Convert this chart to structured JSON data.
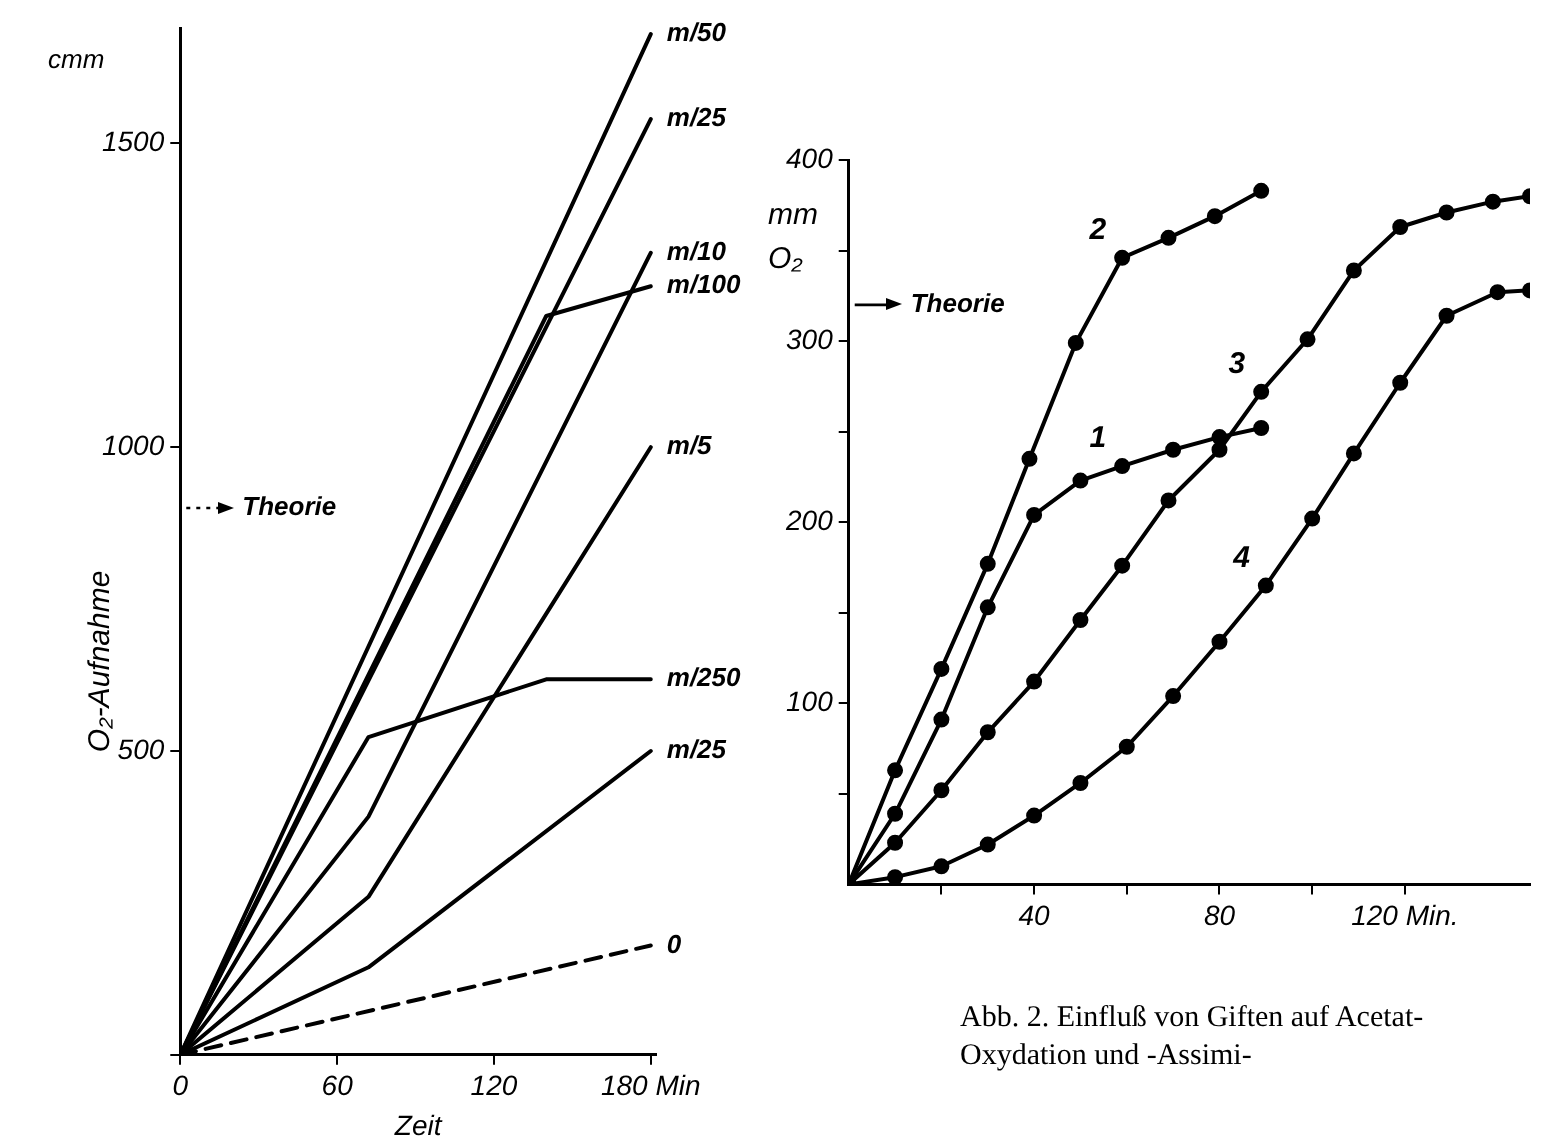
{
  "chart_data": [
    {
      "type": "line",
      "xlabel": "Zeit",
      "ylabel": "O₂-Aufnahme",
      "xlim": [
        0,
        182
      ],
      "ylim": [
        0,
        1690
      ],
      "xticks": [
        0,
        60,
        120,
        {
          "value": 180,
          "label": "180 Min"
        }
      ],
      "yticks": [
        {
          "value": 0,
          "label": null
        },
        500,
        1000,
        1500
      ],
      "grid": false,
      "legend": false,
      "marker": "none",
      "annotations": [
        "cmm"
      ],
      "ref_lines": [
        {
          "axis": "y",
          "value": 900,
          "label": "Theorie",
          "line_style": "dotted"
        }
      ],
      "series": [
        {
          "name": "m/50",
          "color": "#000000",
          "x": [
            0,
            180
          ],
          "values": [
            0,
            1680
          ]
        },
        {
          "name": "m/25",
          "color": "#000000",
          "x": [
            0,
            180
          ],
          "values": [
            0,
            1540
          ]
        },
        {
          "name": "m/10",
          "color": "#000000",
          "x": [
            0,
            72,
            180
          ],
          "values": [
            0,
            392,
            1320
          ]
        },
        {
          "name": "m/100",
          "color": "#000000",
          "x": [
            0,
            140,
            180
          ],
          "values": [
            0,
            1216,
            1265
          ]
        },
        {
          "name": "m/5",
          "color": "#000000",
          "x": [
            0,
            72,
            180
          ],
          "values": [
            0,
            260,
            1000
          ]
        },
        {
          "name": "m/250",
          "color": "#000000",
          "x": [
            0,
            72,
            140,
            180
          ],
          "values": [
            0,
            523,
            618,
            618
          ]
        },
        {
          "name": "m/25",
          "color": "#000000",
          "x": [
            0,
            72,
            180
          ],
          "values": [
            0,
            144,
            500
          ]
        },
        {
          "name": "0",
          "color": "#000000",
          "x": [
            0,
            180
          ],
          "values": [
            0,
            180
          ],
          "line_style": "dashed"
        }
      ]
    },
    {
      "type": "line",
      "ylabel": "mm O₂",
      "xlim": [
        0,
        147
      ],
      "ylim": [
        0,
        400
      ],
      "xticks": [
        {
          "value": 20,
          "label": null
        },
        40,
        {
          "value": 60,
          "label": null
        },
        80,
        {
          "value": 100,
          "label": null
        },
        {
          "value": 120,
          "label": "120 Min."
        }
      ],
      "yticks": [
        {
          "value": 50,
          "label": null
        },
        100,
        {
          "value": 150,
          "label": null
        },
        200,
        {
          "value": 250,
          "label": null
        },
        300,
        {
          "value": 350,
          "label": null
        },
        400
      ],
      "grid": false,
      "legend": false,
      "marker": "circle",
      "annotations": [
        "Abb. 2. Einfluß von Giften auf Acetat-Oxydation und -Assimi-"
      ],
      "ref_lines": [
        {
          "axis": "y",
          "value": 320,
          "label": "Theorie",
          "line_style": "solid"
        }
      ],
      "series": [
        {
          "name": "1",
          "color": "#000000",
          "x": [
            0,
            10,
            20,
            30,
            40,
            50,
            59,
            70,
            80,
            89
          ],
          "values": [
            0,
            39,
            91,
            153,
            204,
            223,
            231,
            240,
            247,
            252
          ]
        },
        {
          "name": "2",
          "color": "#000000",
          "x": [
            0,
            10,
            20,
            30,
            39,
            49,
            59,
            69,
            79,
            89
          ],
          "values": [
            0,
            63,
            119,
            177,
            235,
            299,
            346,
            357,
            369,
            383
          ]
        },
        {
          "name": "3",
          "color": "#000000",
          "x": [
            0,
            10,
            20,
            30,
            40,
            50,
            59,
            69,
            80,
            89,
            99,
            109,
            119,
            129,
            139,
            147
          ],
          "values": [
            0,
            23,
            52,
            84,
            112,
            146,
            176,
            212,
            240,
            272,
            301,
            339,
            363,
            371,
            377,
            380
          ]
        },
        {
          "name": "4",
          "color": "#000000",
          "x": [
            0,
            10,
            20,
            30,
            40,
            50,
            60,
            70,
            80,
            90,
            100,
            109,
            119,
            129,
            140,
            147
          ],
          "values": [
            0,
            4,
            10,
            22,
            38,
            56,
            76,
            104,
            134,
            165,
            202,
            238,
            277,
            314,
            327,
            328
          ]
        }
      ]
    }
  ]
}
